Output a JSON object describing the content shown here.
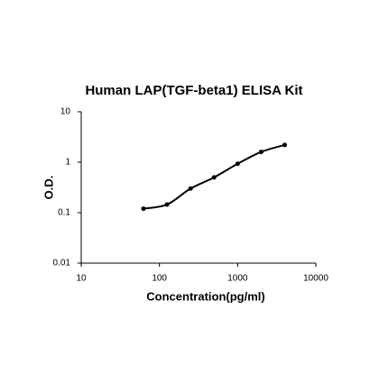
{
  "chart_data": {
    "type": "scatter",
    "title": "Human LAP(TGF-beta1) ELISA Kit",
    "x_label": "Concentration(pg/ml)",
    "y_label": "O.D.",
    "x_log": true,
    "y_log": true,
    "xlim": [
      10,
      10000
    ],
    "ylim": [
      0.01,
      10
    ],
    "xticks": [
      10,
      100,
      1000,
      10000
    ],
    "yticks": [
      0.01,
      0.1,
      1,
      10
    ],
    "series": [
      {
        "color": "#000000",
        "x": [
          62.5,
          125,
          250,
          500,
          1000,
          2000,
          4000
        ],
        "values": [
          0.12,
          0.145,
          0.3,
          0.5,
          0.93,
          1.6,
          2.2
        ]
      }
    ]
  }
}
